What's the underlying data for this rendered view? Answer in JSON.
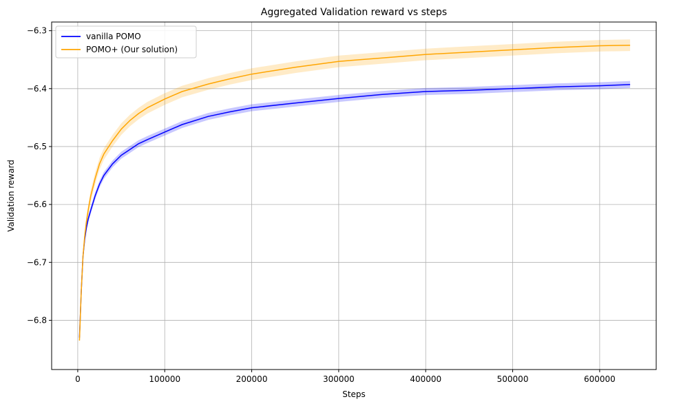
{
  "chart_data": {
    "type": "line",
    "title": "Aggregated Validation reward vs steps",
    "xlabel": "Steps",
    "ylabel": "Validation reward",
    "xlim": [
      -30000,
      665000
    ],
    "ylim": [
      -6.885,
      -6.285
    ],
    "xticks": [
      0,
      100000,
      200000,
      300000,
      400000,
      500000,
      600000
    ],
    "xtick_labels": [
      "0",
      "100000",
      "200000",
      "300000",
      "400000",
      "500000",
      "600000"
    ],
    "yticks": [
      -6.8,
      -6.7,
      -6.6,
      -6.5,
      -6.4,
      -6.3
    ],
    "ytick_labels": [
      "−6.8",
      "−6.7",
      "−6.6",
      "−6.5",
      "−6.4",
      "−6.3"
    ],
    "grid": true,
    "legend_position": "top-left",
    "series": [
      {
        "name": "vanilla POMO",
        "color": "#0000ff",
        "band_color": "#0000ff",
        "x": [
          2000,
          4000,
          6000,
          8000,
          10000,
          12000,
          15000,
          20000,
          25000,
          30000,
          40000,
          50000,
          60000,
          70000,
          80000,
          100000,
          120000,
          150000,
          175000,
          200000,
          250000,
          300000,
          350000,
          400000,
          450000,
          500000,
          550000,
          600000,
          635000
        ],
        "y": [
          -6.83,
          -6.75,
          -6.69,
          -6.66,
          -6.64,
          -6.625,
          -6.61,
          -6.585,
          -6.565,
          -6.55,
          -6.53,
          -6.515,
          -6.505,
          -6.495,
          -6.488,
          -6.475,
          -6.462,
          -6.448,
          -6.44,
          -6.433,
          -6.425,
          -6.417,
          -6.41,
          -6.405,
          -6.403,
          -6.4,
          -6.397,
          -6.395,
          -6.393
        ],
        "band": 0.006
      },
      {
        "name": "POMO+ (Our solution)",
        "color": "#ffa500",
        "band_color": "#ffa500",
        "x": [
          2000,
          4000,
          6000,
          8000,
          10000,
          12000,
          15000,
          20000,
          25000,
          30000,
          40000,
          50000,
          60000,
          70000,
          80000,
          100000,
          120000,
          150000,
          175000,
          200000,
          250000,
          300000,
          350000,
          400000,
          450000,
          500000,
          550000,
          600000,
          635000
        ],
        "y": [
          -6.835,
          -6.75,
          -6.69,
          -6.655,
          -6.63,
          -6.61,
          -6.585,
          -6.555,
          -6.53,
          -6.513,
          -6.49,
          -6.47,
          -6.455,
          -6.443,
          -6.433,
          -6.418,
          -6.405,
          -6.392,
          -6.383,
          -6.375,
          -6.363,
          -6.353,
          -6.347,
          -6.341,
          -6.337,
          -6.333,
          -6.329,
          -6.326,
          -6.325
        ],
        "band": 0.01
      }
    ]
  }
}
